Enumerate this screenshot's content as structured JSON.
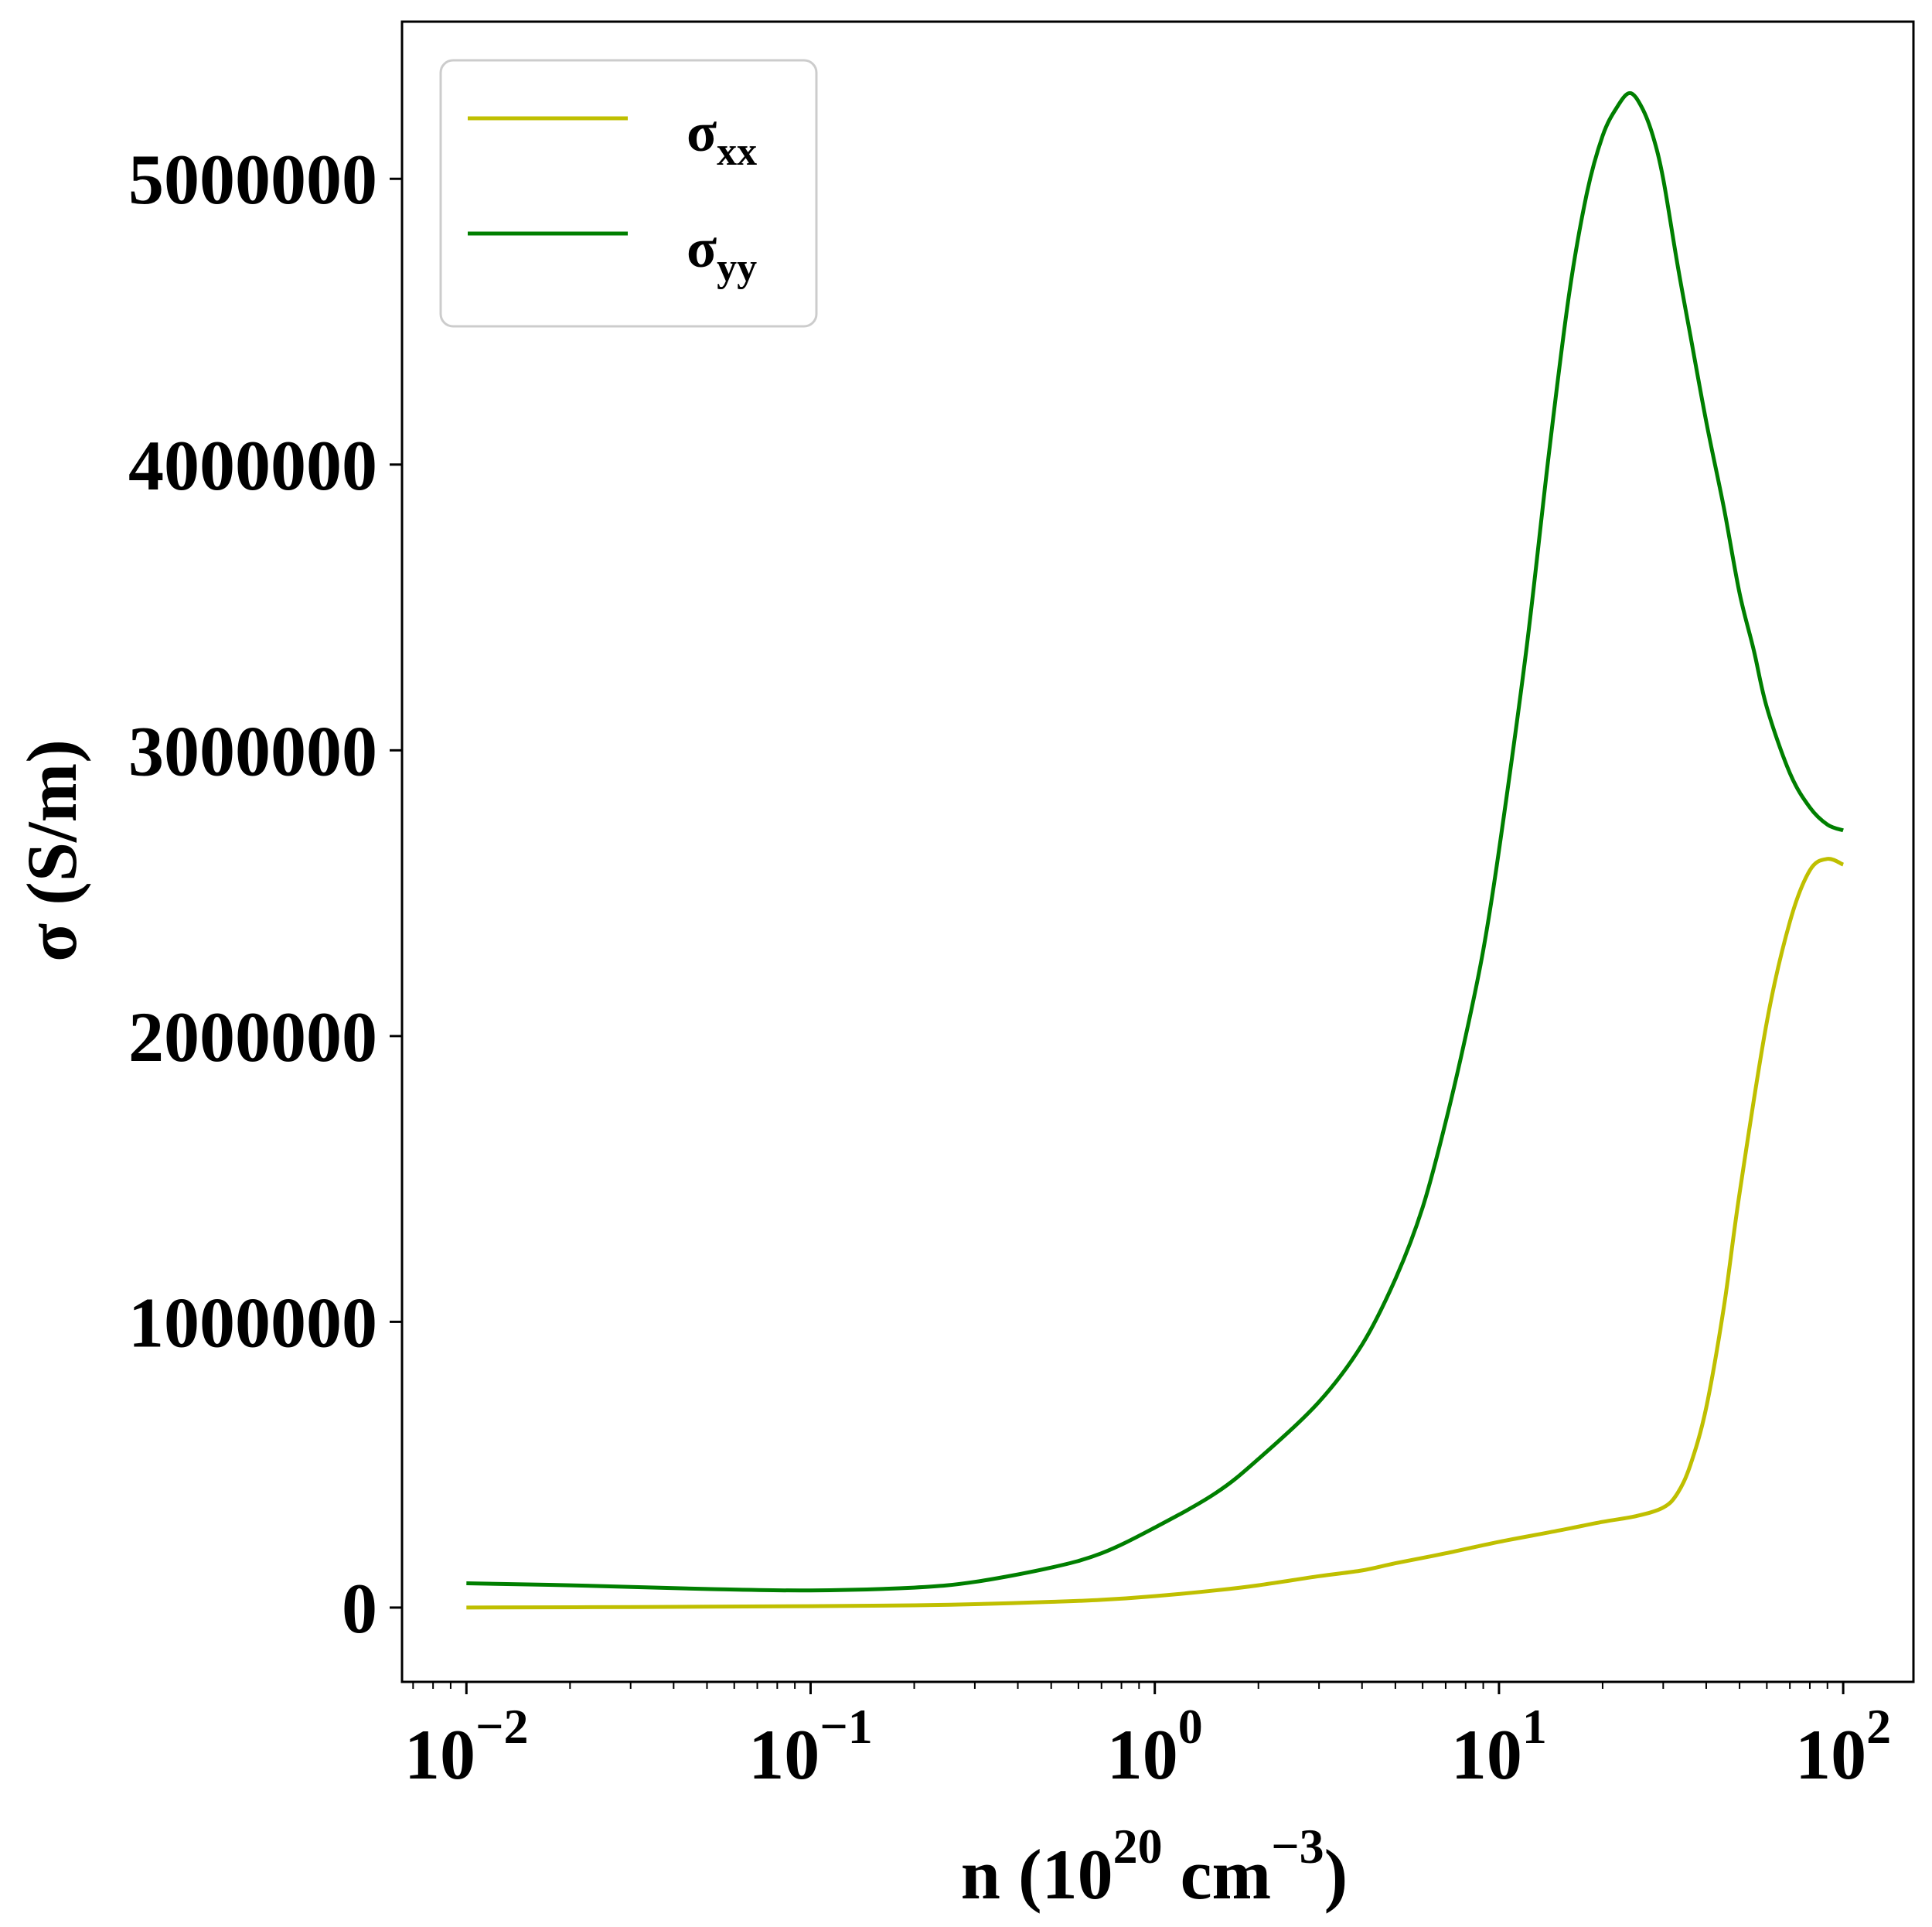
{
  "chart_data": {
    "type": "line",
    "xlabel": {
      "base": "n (10",
      "sup1": "20",
      "mid": " cm",
      "sup2": "−3",
      "end": ")"
    },
    "ylabel": "σ (S/m)",
    "xscale": "log",
    "xlim": [
      0.0065,
      160
    ],
    "ylim": [
      -260000,
      5550000
    ],
    "yticks": [
      {
        "value": 0,
        "label": "0"
      },
      {
        "value": 1000000,
        "label": "1000000"
      },
      {
        "value": 2000000,
        "label": "2000000"
      },
      {
        "value": 3000000,
        "label": "3000000"
      },
      {
        "value": 4000000,
        "label": "4000000"
      },
      {
        "value": 5000000,
        "label": "5000000"
      }
    ],
    "xticks": [
      {
        "value": 0.01,
        "base": "10",
        "exp": "−2"
      },
      {
        "value": 0.1,
        "base": "10",
        "exp": "−1"
      },
      {
        "value": 1,
        "base": "10",
        "exp": "0"
      },
      {
        "value": 10,
        "base": "10",
        "exp": "1"
      },
      {
        "value": 100,
        "base": "10",
        "exp": "2"
      }
    ],
    "grid": false,
    "legend_position": "top-left",
    "series": [
      {
        "name": {
          "base": "σ",
          "sub": "xx"
        },
        "color": "#bfbf00",
        "points": [
          [
            0.01,
            0
          ],
          [
            0.03,
            2000
          ],
          [
            0.1,
            5000
          ],
          [
            0.2,
            8000
          ],
          [
            0.3,
            12000
          ],
          [
            0.5,
            20000
          ],
          [
            0.7,
            27000
          ],
          [
            1.0,
            40000
          ],
          [
            1.5,
            60000
          ],
          [
            2.0,
            78000
          ],
          [
            3.0,
            110000
          ],
          [
            4.0,
            130000
          ],
          [
            5.0,
            155000
          ],
          [
            7.0,
            190000
          ],
          [
            10.0,
            230000
          ],
          [
            15.0,
            270000
          ],
          [
            20.0,
            300000
          ],
          [
            25.0,
            320000
          ],
          [
            30.0,
            350000
          ],
          [
            33.0,
            400000
          ],
          [
            36.0,
            500000
          ],
          [
            40.0,
            700000
          ],
          [
            45.0,
            1050000
          ],
          [
            50.0,
            1450000
          ],
          [
            60.0,
            2050000
          ],
          [
            70.0,
            2400000
          ],
          [
            80.0,
            2580000
          ],
          [
            90.0,
            2620000
          ],
          [
            100.0,
            2600000
          ]
        ]
      },
      {
        "name": {
          "base": "σ",
          "sub": "yy"
        },
        "color": "#007f00",
        "points": [
          [
            0.01,
            85000
          ],
          [
            0.02,
            78000
          ],
          [
            0.05,
            65000
          ],
          [
            0.1,
            60000
          ],
          [
            0.2,
            70000
          ],
          [
            0.3,
            90000
          ],
          [
            0.5,
            140000
          ],
          [
            0.7,
            190000
          ],
          [
            1.0,
            280000
          ],
          [
            1.5,
            400000
          ],
          [
            2.0,
            520000
          ],
          [
            3.0,
            720000
          ],
          [
            4.0,
            920000
          ],
          [
            5.0,
            1150000
          ],
          [
            6.0,
            1400000
          ],
          [
            7.0,
            1700000
          ],
          [
            8.0,
            2000000
          ],
          [
            9.0,
            2300000
          ],
          [
            10.0,
            2650000
          ],
          [
            12.0,
            3350000
          ],
          [
            14.0,
            4050000
          ],
          [
            16.0,
            4600000
          ],
          [
            18.0,
            4950000
          ],
          [
            20.0,
            5150000
          ],
          [
            22.0,
            5250000
          ],
          [
            24.0,
            5300000
          ],
          [
            26.0,
            5250000
          ],
          [
            28.0,
            5150000
          ],
          [
            30.0,
            5000000
          ],
          [
            33.0,
            4700000
          ],
          [
            36.0,
            4450000
          ],
          [
            40.0,
            4150000
          ],
          [
            45.0,
            3850000
          ],
          [
            50.0,
            3550000
          ],
          [
            55.0,
            3350000
          ],
          [
            60.0,
            3150000
          ],
          [
            70.0,
            2920000
          ],
          [
            80.0,
            2800000
          ],
          [
            90.0,
            2740000
          ],
          [
            100.0,
            2720000
          ]
        ]
      }
    ]
  }
}
